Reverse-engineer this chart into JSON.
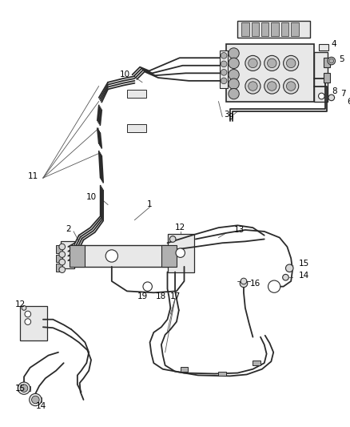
{
  "background_color": "#ffffff",
  "line_color": "#2a2a2a",
  "label_color": "#000000",
  "fig_width": 4.38,
  "fig_height": 5.33,
  "dpi": 100,
  "label_fontsize": 7.5,
  "lw_main": 1.3,
  "lw_thin": 0.8,
  "lw_thick": 2.0,
  "gray_fill": "#d8d8d8",
  "mid_gray": "#b0b0b0",
  "light_gray": "#e8e8e8"
}
